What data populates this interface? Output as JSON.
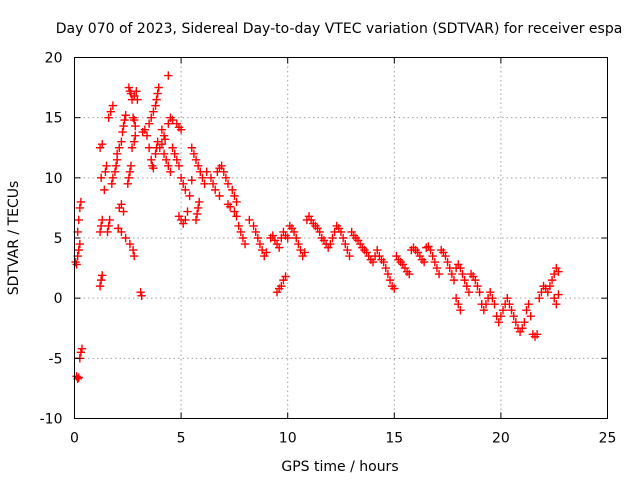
{
  "chart_data": {
    "type": "scatter",
    "title": "Day 070 of 2023, Sidereal Day-to-day VTEC variation (SDTVAR) for receiver espa",
    "xlabel": "GPS time / hours",
    "ylabel": "SDTVAR / TECUs",
    "xlim": [
      0,
      25
    ],
    "ylim": [
      -10,
      20
    ],
    "xticks": [
      0,
      5,
      10,
      15,
      20,
      25
    ],
    "yticks": [
      -10,
      -5,
      0,
      5,
      10,
      15,
      20
    ],
    "grid": true,
    "marker": "+",
    "color": "#ff0000",
    "series": [
      {
        "name": "SDTVAR",
        "points": [
          [
            0.05,
            3.0
          ],
          [
            0.1,
            2.8
          ],
          [
            0.15,
            3.5
          ],
          [
            0.2,
            4.0
          ],
          [
            0.25,
            4.5
          ],
          [
            0.15,
            5.5
          ],
          [
            0.2,
            6.5
          ],
          [
            0.25,
            7.5
          ],
          [
            0.3,
            8.0
          ],
          [
            0.1,
            -6.5
          ],
          [
            0.15,
            -6.7
          ],
          [
            0.2,
            -6.6
          ],
          [
            0.25,
            -5.0
          ],
          [
            0.3,
            -4.5
          ],
          [
            0.35,
            -4.2
          ],
          [
            1.2,
            1.0
          ],
          [
            1.25,
            1.5
          ],
          [
            1.3,
            1.9
          ],
          [
            1.2,
            5.5
          ],
          [
            1.25,
            6.0
          ],
          [
            1.3,
            6.5
          ],
          [
            1.25,
            10.0
          ],
          [
            1.2,
            12.5
          ],
          [
            1.3,
            12.8
          ],
          [
            1.4,
            9.0
          ],
          [
            1.45,
            10.5
          ],
          [
            1.5,
            11.0
          ],
          [
            1.55,
            5.5
          ],
          [
            1.6,
            6.0
          ],
          [
            1.65,
            6.5
          ],
          [
            1.6,
            15.0
          ],
          [
            1.7,
            15.5
          ],
          [
            1.8,
            16.0
          ],
          [
            1.75,
            9.5
          ],
          [
            1.8,
            10.0
          ],
          [
            1.9,
            10.5
          ],
          [
            1.95,
            11.0
          ],
          [
            2.0,
            11.5
          ],
          [
            2.0,
            12.0
          ],
          [
            2.1,
            12.5
          ],
          [
            2.2,
            13.0
          ],
          [
            2.25,
            13.8
          ],
          [
            2.3,
            14.3
          ],
          [
            2.35,
            14.8
          ],
          [
            2.4,
            15.2
          ],
          [
            2.05,
            5.8
          ],
          [
            2.2,
            5.5
          ],
          [
            2.4,
            5.0
          ],
          [
            2.6,
            4.5
          ],
          [
            2.75,
            4.0
          ],
          [
            2.8,
            3.5
          ],
          [
            2.1,
            7.5
          ],
          [
            2.2,
            7.8
          ],
          [
            2.3,
            7.2
          ],
          [
            2.5,
            9.5
          ],
          [
            2.55,
            10.0
          ],
          [
            2.6,
            10.5
          ],
          [
            2.65,
            11.0
          ],
          [
            2.7,
            12.5
          ],
          [
            2.8,
            13.0
          ],
          [
            2.85,
            13.5
          ],
          [
            2.55,
            17.5
          ],
          [
            2.6,
            17.2
          ],
          [
            2.65,
            17.0
          ],
          [
            2.7,
            16.5
          ],
          [
            2.8,
            16.8
          ],
          [
            2.9,
            17.2
          ],
          [
            2.95,
            16.5
          ],
          [
            2.75,
            15.0
          ],
          [
            2.8,
            14.8
          ],
          [
            2.85,
            14.3
          ],
          [
            3.1,
            0.5
          ],
          [
            3.15,
            0.2
          ],
          [
            3.2,
            13.8
          ],
          [
            3.3,
            14.0
          ],
          [
            3.4,
            13.5
          ],
          [
            3.5,
            12.5
          ],
          [
            3.6,
            11.5
          ],
          [
            3.65,
            11.0
          ],
          [
            3.7,
            10.8
          ],
          [
            3.5,
            14.5
          ],
          [
            3.6,
            15.0
          ],
          [
            3.7,
            15.5
          ],
          [
            3.8,
            16.0
          ],
          [
            3.85,
            16.5
          ],
          [
            3.9,
            17.0
          ],
          [
            3.95,
            17.5
          ],
          [
            4.4,
            18.5
          ],
          [
            3.8,
            12.0
          ],
          [
            3.85,
            12.5
          ],
          [
            3.9,
            13.0
          ],
          [
            4.0,
            12.5
          ],
          [
            4.1,
            12.8
          ],
          [
            4.2,
            12.0
          ],
          [
            4.3,
            11.5
          ],
          [
            4.4,
            11.0
          ],
          [
            4.5,
            10.5
          ],
          [
            4.1,
            14.0
          ],
          [
            4.2,
            13.5
          ],
          [
            4.25,
            13.2
          ],
          [
            4.4,
            14.5
          ],
          [
            4.5,
            15.0
          ],
          [
            4.6,
            14.8
          ],
          [
            4.8,
            14.5
          ],
          [
            4.9,
            14.2
          ],
          [
            5.0,
            14.0
          ],
          [
            4.6,
            12.5
          ],
          [
            4.7,
            12.0
          ],
          [
            4.8,
            11.5
          ],
          [
            4.9,
            11.0
          ],
          [
            5.0,
            10.0
          ],
          [
            5.1,
            9.5
          ],
          [
            5.2,
            9.0
          ],
          [
            4.9,
            6.8
          ],
          [
            5.0,
            6.5
          ],
          [
            5.1,
            6.2
          ],
          [
            5.2,
            6.5
          ],
          [
            5.3,
            7.2
          ],
          [
            5.4,
            8.5
          ],
          [
            5.5,
            9.8
          ],
          [
            5.5,
            12.5
          ],
          [
            5.6,
            12.0
          ],
          [
            5.7,
            11.5
          ],
          [
            5.8,
            11.0
          ],
          [
            5.9,
            10.5
          ],
          [
            6.0,
            10.0
          ],
          [
            6.1,
            9.5
          ],
          [
            5.7,
            6.5
          ],
          [
            5.75,
            7.0
          ],
          [
            5.8,
            7.5
          ],
          [
            5.85,
            8.0
          ],
          [
            6.2,
            10.5
          ],
          [
            6.4,
            10.0
          ],
          [
            6.5,
            9.5
          ],
          [
            6.6,
            9.0
          ],
          [
            6.8,
            8.5
          ],
          [
            6.7,
            10.5
          ],
          [
            6.8,
            10.8
          ],
          [
            6.9,
            11.0
          ],
          [
            7.0,
            10.5
          ],
          [
            7.1,
            10.0
          ],
          [
            7.2,
            9.5
          ],
          [
            7.4,
            9.0
          ],
          [
            7.5,
            8.5
          ],
          [
            7.6,
            8.0
          ],
          [
            7.2,
            7.8
          ],
          [
            7.3,
            7.6
          ],
          [
            7.5,
            7.2
          ],
          [
            7.6,
            6.8
          ],
          [
            7.7,
            6.0
          ],
          [
            7.8,
            5.5
          ],
          [
            7.9,
            5.0
          ],
          [
            8.0,
            4.5
          ],
          [
            8.2,
            6.5
          ],
          [
            8.4,
            6.0
          ],
          [
            8.5,
            5.5
          ],
          [
            8.6,
            5.0
          ],
          [
            8.7,
            4.5
          ],
          [
            8.8,
            4.0
          ],
          [
            8.9,
            3.5
          ],
          [
            9.0,
            3.8
          ],
          [
            9.2,
            5.0
          ],
          [
            9.3,
            5.2
          ],
          [
            9.4,
            4.8
          ],
          [
            9.5,
            4.5
          ],
          [
            9.6,
            4.2
          ],
          [
            9.7,
            5.0
          ],
          [
            9.8,
            5.5
          ],
          [
            9.9,
            5.2
          ],
          [
            10.0,
            5.0
          ],
          [
            9.5,
            0.5
          ],
          [
            9.6,
            0.8
          ],
          [
            9.7,
            1.0
          ],
          [
            9.8,
            1.5
          ],
          [
            9.9,
            1.8
          ],
          [
            10.1,
            6.0
          ],
          [
            10.2,
            5.8
          ],
          [
            10.3,
            5.5
          ],
          [
            10.4,
            5.0
          ],
          [
            10.5,
            4.5
          ],
          [
            10.6,
            4.0
          ],
          [
            10.7,
            3.5
          ],
          [
            10.8,
            3.8
          ],
          [
            10.9,
            6.5
          ],
          [
            11.0,
            6.8
          ],
          [
            11.1,
            6.5
          ],
          [
            11.2,
            6.2
          ],
          [
            11.3,
            6.0
          ],
          [
            11.4,
            5.8
          ],
          [
            11.5,
            5.5
          ],
          [
            11.6,
            5.0
          ],
          [
            11.7,
            4.8
          ],
          [
            11.8,
            4.5
          ],
          [
            11.9,
            4.2
          ],
          [
            12.0,
            4.5
          ],
          [
            12.1,
            5.0
          ],
          [
            12.2,
            5.5
          ],
          [
            12.3,
            6.0
          ],
          [
            12.4,
            5.8
          ],
          [
            12.5,
            5.5
          ],
          [
            12.6,
            5.0
          ],
          [
            12.7,
            4.5
          ],
          [
            12.8,
            4.0
          ],
          [
            12.9,
            3.5
          ],
          [
            13.0,
            5.5
          ],
          [
            13.1,
            5.2
          ],
          [
            13.2,
            5.0
          ],
          [
            13.3,
            4.8
          ],
          [
            13.4,
            4.5
          ],
          [
            13.5,
            4.2
          ],
          [
            13.6,
            4.0
          ],
          [
            13.7,
            3.8
          ],
          [
            13.8,
            3.5
          ],
          [
            13.9,
            3.2
          ],
          [
            14.0,
            3.0
          ],
          [
            14.1,
            3.5
          ],
          [
            14.2,
            4.0
          ],
          [
            14.3,
            3.5
          ],
          [
            14.4,
            3.2
          ],
          [
            14.5,
            3.0
          ],
          [
            14.6,
            2.5
          ],
          [
            14.7,
            2.0
          ],
          [
            14.8,
            1.5
          ],
          [
            14.9,
            1.0
          ],
          [
            15.0,
            0.8
          ],
          [
            15.1,
            3.5
          ],
          [
            15.2,
            3.2
          ],
          [
            15.3,
            3.0
          ],
          [
            15.4,
            2.8
          ],
          [
            15.5,
            2.5
          ],
          [
            15.6,
            2.2
          ],
          [
            15.7,
            2.0
          ],
          [
            15.8,
            4.0
          ],
          [
            15.9,
            4.2
          ],
          [
            16.0,
            4.0
          ],
          [
            16.1,
            3.8
          ],
          [
            16.2,
            3.5
          ],
          [
            16.3,
            3.2
          ],
          [
            16.4,
            3.0
          ],
          [
            16.5,
            4.2
          ],
          [
            16.6,
            4.3
          ],
          [
            16.7,
            4.0
          ],
          [
            16.8,
            3.5
          ],
          [
            16.9,
            3.0
          ],
          [
            17.0,
            2.5
          ],
          [
            17.1,
            2.0
          ],
          [
            17.2,
            4.0
          ],
          [
            17.3,
            3.8
          ],
          [
            17.4,
            3.5
          ],
          [
            17.5,
            3.0
          ],
          [
            17.6,
            2.5
          ],
          [
            17.7,
            2.0
          ],
          [
            17.8,
            1.5
          ],
          [
            17.9,
            2.5
          ],
          [
            18.0,
            2.8
          ],
          [
            18.1,
            2.5
          ],
          [
            18.2,
            2.0
          ],
          [
            18.3,
            1.5
          ],
          [
            18.4,
            1.0
          ],
          [
            18.5,
            0.5
          ],
          [
            17.9,
            0.0
          ],
          [
            18.0,
            -0.5
          ],
          [
            18.1,
            -1.0
          ],
          [
            18.6,
            2.0
          ],
          [
            18.7,
            1.8
          ],
          [
            18.8,
            1.5
          ],
          [
            18.9,
            1.0
          ],
          [
            19.0,
            0.5
          ],
          [
            19.1,
            -0.5
          ],
          [
            19.2,
            -1.0
          ],
          [
            19.3,
            -0.5
          ],
          [
            19.4,
            0.0
          ],
          [
            19.5,
            0.5
          ],
          [
            19.6,
            0.0
          ],
          [
            19.7,
            -0.5
          ],
          [
            19.8,
            -1.5
          ],
          [
            19.9,
            -2.0
          ],
          [
            20.0,
            -1.5
          ],
          [
            20.1,
            -1.0
          ],
          [
            20.2,
            -0.5
          ],
          [
            20.3,
            0.0
          ],
          [
            20.4,
            -0.5
          ],
          [
            20.5,
            -1.0
          ],
          [
            20.6,
            -1.5
          ],
          [
            20.7,
            -2.0
          ],
          [
            20.8,
            -2.5
          ],
          [
            20.9,
            -2.8
          ],
          [
            21.0,
            -2.5
          ],
          [
            21.1,
            -2.0
          ],
          [
            21.2,
            -1.0
          ],
          [
            21.3,
            -0.5
          ],
          [
            21.4,
            -1.5
          ],
          [
            21.5,
            -3.0
          ],
          [
            21.6,
            -3.2
          ],
          [
            21.7,
            -3.0
          ],
          [
            21.8,
            0.0
          ],
          [
            21.9,
            0.5
          ],
          [
            22.0,
            1.0
          ],
          [
            22.1,
            0.8
          ],
          [
            22.2,
            0.5
          ],
          [
            22.3,
            1.0
          ],
          [
            22.4,
            1.5
          ],
          [
            22.5,
            2.0
          ],
          [
            22.6,
            2.5
          ],
          [
            22.7,
            2.2
          ],
          [
            22.5,
            0.0
          ],
          [
            22.6,
            -0.5
          ],
          [
            22.7,
            0.3
          ]
        ]
      }
    ]
  }
}
